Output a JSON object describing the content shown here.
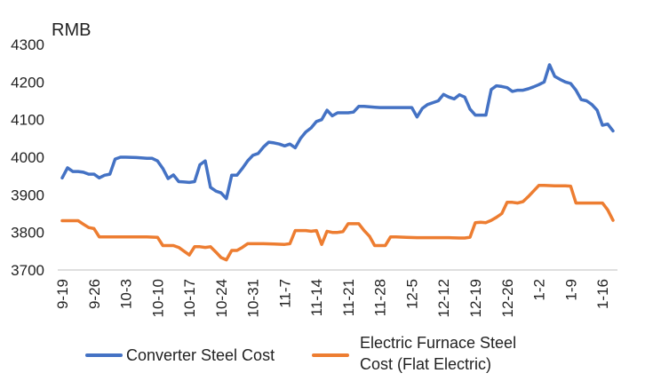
{
  "chart_data": {
    "type": "line",
    "unit_label": "RMB",
    "ylim": [
      3700,
      4300
    ],
    "yticks": [
      3700,
      3800,
      3900,
      4000,
      4100,
      4200,
      4300
    ],
    "y_tick_labels": [
      "3700",
      "3800",
      "3900",
      "4000",
      "4100",
      "4200",
      "4300"
    ],
    "x_tick_labels": [
      "9-19",
      "9-26",
      "10-3",
      "10-10",
      "10-17",
      "10-24",
      "10-31",
      "11-7",
      "11-14",
      "11-21",
      "11-28",
      "12-5",
      "12-12",
      "12-19",
      "12-26",
      "1-2",
      "1-9",
      "1-16"
    ],
    "grid": false,
    "legend_position": "bottom",
    "series": [
      {
        "name": "Converter Steel Cost",
        "color": "#4472C4",
        "points": [
          [
            0,
            3945
          ],
          [
            1,
            3972
          ],
          [
            2,
            3962
          ],
          [
            3,
            3962
          ],
          [
            4,
            3960
          ],
          [
            5,
            3955
          ],
          [
            6,
            3955
          ],
          [
            7,
            3945
          ],
          [
            8,
            3952
          ],
          [
            9,
            3955
          ],
          [
            10,
            3995
          ],
          [
            11,
            4000
          ],
          [
            12,
            4000
          ],
          [
            14,
            3999
          ],
          [
            16,
            3997
          ],
          [
            17,
            3997
          ],
          [
            18,
            3990
          ],
          [
            19,
            3970
          ],
          [
            20,
            3943
          ],
          [
            21,
            3953
          ],
          [
            22,
            3935
          ],
          [
            23,
            3934
          ],
          [
            24,
            3933
          ],
          [
            25,
            3935
          ],
          [
            26,
            3980
          ],
          [
            27,
            3990
          ],
          [
            28,
            3920
          ],
          [
            29,
            3910
          ],
          [
            30,
            3905
          ],
          [
            31,
            3890
          ],
          [
            32,
            3952
          ],
          [
            33,
            3952
          ],
          [
            34,
            3970
          ],
          [
            35,
            3990
          ],
          [
            36,
            4005
          ],
          [
            37,
            4010
          ],
          [
            38,
            4027
          ],
          [
            39,
            4040
          ],
          [
            40,
            4038
          ],
          [
            41,
            4035
          ],
          [
            42,
            4030
          ],
          [
            43,
            4035
          ],
          [
            44,
            4025
          ],
          [
            45,
            4050
          ],
          [
            46,
            4067
          ],
          [
            47,
            4078
          ],
          [
            48,
            4095
          ],
          [
            49,
            4100
          ],
          [
            50,
            4125
          ],
          [
            51,
            4110
          ],
          [
            52,
            4118
          ],
          [
            53,
            4118
          ],
          [
            54,
            4118
          ],
          [
            55,
            4120
          ],
          [
            56,
            4135
          ],
          [
            57,
            4135
          ],
          [
            58,
            4134
          ],
          [
            59,
            4133
          ],
          [
            60,
            4132
          ],
          [
            62,
            4132
          ],
          [
            64,
            4132
          ],
          [
            66,
            4132
          ],
          [
            67,
            4107
          ],
          [
            68,
            4130
          ],
          [
            69,
            4140
          ],
          [
            70,
            4145
          ],
          [
            71,
            4150
          ],
          [
            72,
            4167
          ],
          [
            73,
            4160
          ],
          [
            74,
            4155
          ],
          [
            75,
            4166
          ],
          [
            76,
            4160
          ],
          [
            77,
            4128
          ],
          [
            78,
            4112
          ],
          [
            79,
            4112
          ],
          [
            80,
            4112
          ],
          [
            81,
            4180
          ],
          [
            82,
            4190
          ],
          [
            83,
            4188
          ],
          [
            84,
            4185
          ],
          [
            85,
            4175
          ],
          [
            86,
            4178
          ],
          [
            87,
            4178
          ],
          [
            88,
            4182
          ],
          [
            89,
            4187
          ],
          [
            90,
            4193
          ],
          [
            91,
            4200
          ],
          [
            92,
            4246
          ],
          [
            93,
            4215
          ],
          [
            94,
            4207
          ],
          [
            95,
            4200
          ],
          [
            96,
            4196
          ],
          [
            97,
            4178
          ],
          [
            98,
            4153
          ],
          [
            99,
            4150
          ],
          [
            100,
            4140
          ],
          [
            101,
            4125
          ],
          [
            102,
            4085
          ],
          [
            103,
            4088
          ],
          [
            104,
            4070
          ]
        ]
      },
      {
        "name": "Electric Furnace Steel Cost (Flat Electric)",
        "color": "#ED7D31",
        "points": [
          [
            0,
            3831
          ],
          [
            1,
            3831
          ],
          [
            2,
            3831
          ],
          [
            3,
            3831
          ],
          [
            4,
            3822
          ],
          [
            5,
            3813
          ],
          [
            6,
            3810
          ],
          [
            7,
            3788
          ],
          [
            8,
            3788
          ],
          [
            10,
            3788
          ],
          [
            12,
            3788
          ],
          [
            14,
            3788
          ],
          [
            16,
            3788
          ],
          [
            18,
            3787
          ],
          [
            19,
            3765
          ],
          [
            20,
            3765
          ],
          [
            21,
            3765
          ],
          [
            22,
            3760
          ],
          [
            23,
            3750
          ],
          [
            24,
            3740
          ],
          [
            25,
            3762
          ],
          [
            26,
            3762
          ],
          [
            27,
            3760
          ],
          [
            28,
            3762
          ],
          [
            29,
            3748
          ],
          [
            30,
            3733
          ],
          [
            31,
            3727
          ],
          [
            32,
            3752
          ],
          [
            33,
            3752
          ],
          [
            34,
            3760
          ],
          [
            35,
            3770
          ],
          [
            36,
            3770
          ],
          [
            38,
            3770
          ],
          [
            40,
            3769
          ],
          [
            42,
            3768
          ],
          [
            43,
            3770
          ],
          [
            44,
            3805
          ],
          [
            45,
            3805
          ],
          [
            46,
            3805
          ],
          [
            47,
            3803
          ],
          [
            48,
            3805
          ],
          [
            49,
            3768
          ],
          [
            50,
            3803
          ],
          [
            51,
            3800
          ],
          [
            52,
            3800
          ],
          [
            53,
            3802
          ],
          [
            54,
            3823
          ],
          [
            55,
            3823
          ],
          [
            56,
            3823
          ],
          [
            57,
            3805
          ],
          [
            58,
            3790
          ],
          [
            59,
            3765
          ],
          [
            60,
            3765
          ],
          [
            61,
            3765
          ],
          [
            62,
            3788
          ],
          [
            63,
            3788
          ],
          [
            65,
            3787
          ],
          [
            67,
            3786
          ],
          [
            69,
            3786
          ],
          [
            71,
            3786
          ],
          [
            73,
            3786
          ],
          [
            75,
            3785
          ],
          [
            76,
            3785
          ],
          [
            77,
            3787
          ],
          [
            78,
            3826
          ],
          [
            79,
            3827
          ],
          [
            80,
            3826
          ],
          [
            81,
            3832
          ],
          [
            82,
            3840
          ],
          [
            83,
            3850
          ],
          [
            84,
            3880
          ],
          [
            85,
            3880
          ],
          [
            86,
            3878
          ],
          [
            87,
            3882
          ],
          [
            88,
            3895
          ],
          [
            89,
            3910
          ],
          [
            90,
            3925
          ],
          [
            91,
            3925
          ],
          [
            93,
            3924
          ],
          [
            95,
            3924
          ],
          [
            96,
            3923
          ],
          [
            97,
            3878
          ],
          [
            98,
            3878
          ],
          [
            100,
            3878
          ],
          [
            101,
            3878
          ],
          [
            102,
            3878
          ],
          [
            103,
            3860
          ],
          [
            104,
            3832
          ]
        ]
      }
    ]
  }
}
